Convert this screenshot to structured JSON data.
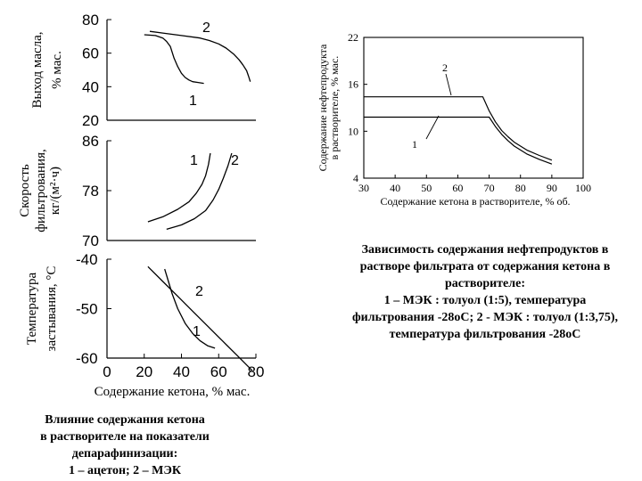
{
  "chart_data": [
    {
      "type": "line",
      "title": "Влияние содержания кетона в растворителе на показатели депарафинизации",
      "xlabel": "Содержание кетона, % мас.",
      "xlim": [
        0,
        80
      ],
      "x_ticks": [
        "0",
        "20",
        "40",
        "60",
        "80"
      ],
      "panels": [
        {
          "name": "oil-yield",
          "ylabel": [
            "Выход масла,",
            "% мас."
          ],
          "ylim": [
            20,
            80
          ],
          "y_ticks": [
            "80",
            "60",
            "40",
            "20"
          ],
          "series": [
            {
              "name": "1",
              "x": [
                20,
                26,
                30,
                32,
                34,
                36,
                38,
                40,
                42,
                44,
                46,
                49,
                52
              ],
              "y": [
                71,
                70.5,
                69,
                67,
                64,
                57,
                52,
                48,
                45.5,
                44,
                43,
                42.5,
                42
              ]
            },
            {
              "name": "2",
              "x": [
                23,
                30,
                40,
                50,
                55,
                60,
                64,
                68,
                71,
                73,
                75,
                76,
                77
              ],
              "y": [
                73,
                72,
                70.5,
                69,
                67.5,
                65.5,
                63,
                59.5,
                56,
                53,
                49.5,
                46.5,
                43
              ]
            }
          ],
          "curve_labels": [
            "1",
            "2"
          ]
        },
        {
          "name": "filtration-rate",
          "ylabel": [
            "Скорость",
            "фильтрования,",
            "кг/(м²·ч)"
          ],
          "ylim": [
            70,
            86
          ],
          "y_ticks": [
            "86",
            "78",
            "70"
          ],
          "series": [
            {
              "name": "1",
              "x": [
                22,
                30,
                38,
                44,
                48,
                51,
                53,
                54.5,
                55.5
              ],
              "y": [
                73,
                73.8,
                75,
                76.2,
                77.6,
                79,
                80.4,
                82.2,
                84
              ]
            },
            {
              "name": "2",
              "x": [
                32,
                40,
                47,
                53,
                57,
                60,
                62.5,
                65,
                67
              ],
              "y": [
                71.8,
                72.5,
                73.5,
                74.8,
                76.5,
                78.2,
                80,
                82,
                84
              ]
            }
          ],
          "curve_labels": [
            "1",
            "2"
          ]
        },
        {
          "name": "pour-point",
          "ylabel": [
            "Температура",
            "застывания, °С"
          ],
          "ylim": [
            -60,
            -40
          ],
          "y_ticks": [
            "-40",
            "-50",
            "-60"
          ],
          "series": [
            {
              "name": "1",
              "x": [
                31,
                33,
                35,
                38,
                42,
                46,
                50,
                54,
                58
              ],
              "y": [
                -42,
                -44.5,
                -47,
                -50,
                -53,
                -55,
                -56.5,
                -57.5,
                -58
              ]
            },
            {
              "name": "2",
              "x": [
                22,
                30,
                38,
                46,
                54,
                62,
                70,
                78
              ],
              "y": [
                -41.5,
                -44.5,
                -47.5,
                -50.5,
                -53.5,
                -56.5,
                -59.5,
                -62.5
              ]
            }
          ],
          "curve_labels": [
            "1",
            "2"
          ]
        }
      ]
    },
    {
      "type": "line",
      "title": "Зависимость содержания нефтепродуктов в растворе фильтрата от содержания кетона в растворителе",
      "xlabel": "Содержание кетона в растворителе, % об.",
      "ylabel": [
        "Содержание нефтепродукта",
        "в растворителе, % мас."
      ],
      "xlim": [
        30,
        100
      ],
      "ylim": [
        4,
        22
      ],
      "x_ticks": [
        "30",
        "40",
        "50",
        "60",
        "70",
        "80",
        "90",
        "100"
      ],
      "y_ticks": [
        "22",
        "16",
        "10",
        "4"
      ],
      "series": [
        {
          "name": "1",
          "x": [
            30,
            70,
            72,
            74,
            76,
            78,
            82,
            86,
            90
          ],
          "y": [
            11.8,
            11.8,
            10.6,
            9.6,
            8.8,
            8.1,
            7.1,
            6.4,
            5.8
          ]
        },
        {
          "name": "2",
          "x": [
            30,
            68,
            70,
            72,
            74,
            76,
            78,
            82,
            86,
            90
          ],
          "y": [
            14.4,
            14.4,
            12.6,
            11.2,
            10.1,
            9.3,
            8.6,
            7.6,
            6.9,
            6.3
          ]
        }
      ],
      "curve_labels": [
        "1",
        "2"
      ]
    }
  ],
  "captions": {
    "left": [
      "Влияние содержания кетона",
      "в растворителе на показатели",
      "депарафинизации:",
      "1 – ацетон; 2 – МЭК"
    ],
    "right": [
      "Зависимость содержания нефтепродуктов в",
      "растворе фильтрата от содержания кетона в",
      "растворителе:",
      "1 – МЭК : толуол (1:5), температура",
      "фильтрования -28оС; 2 - МЭК : толуол (1:3,75),",
      "температура фильтрования -28оС"
    ]
  }
}
